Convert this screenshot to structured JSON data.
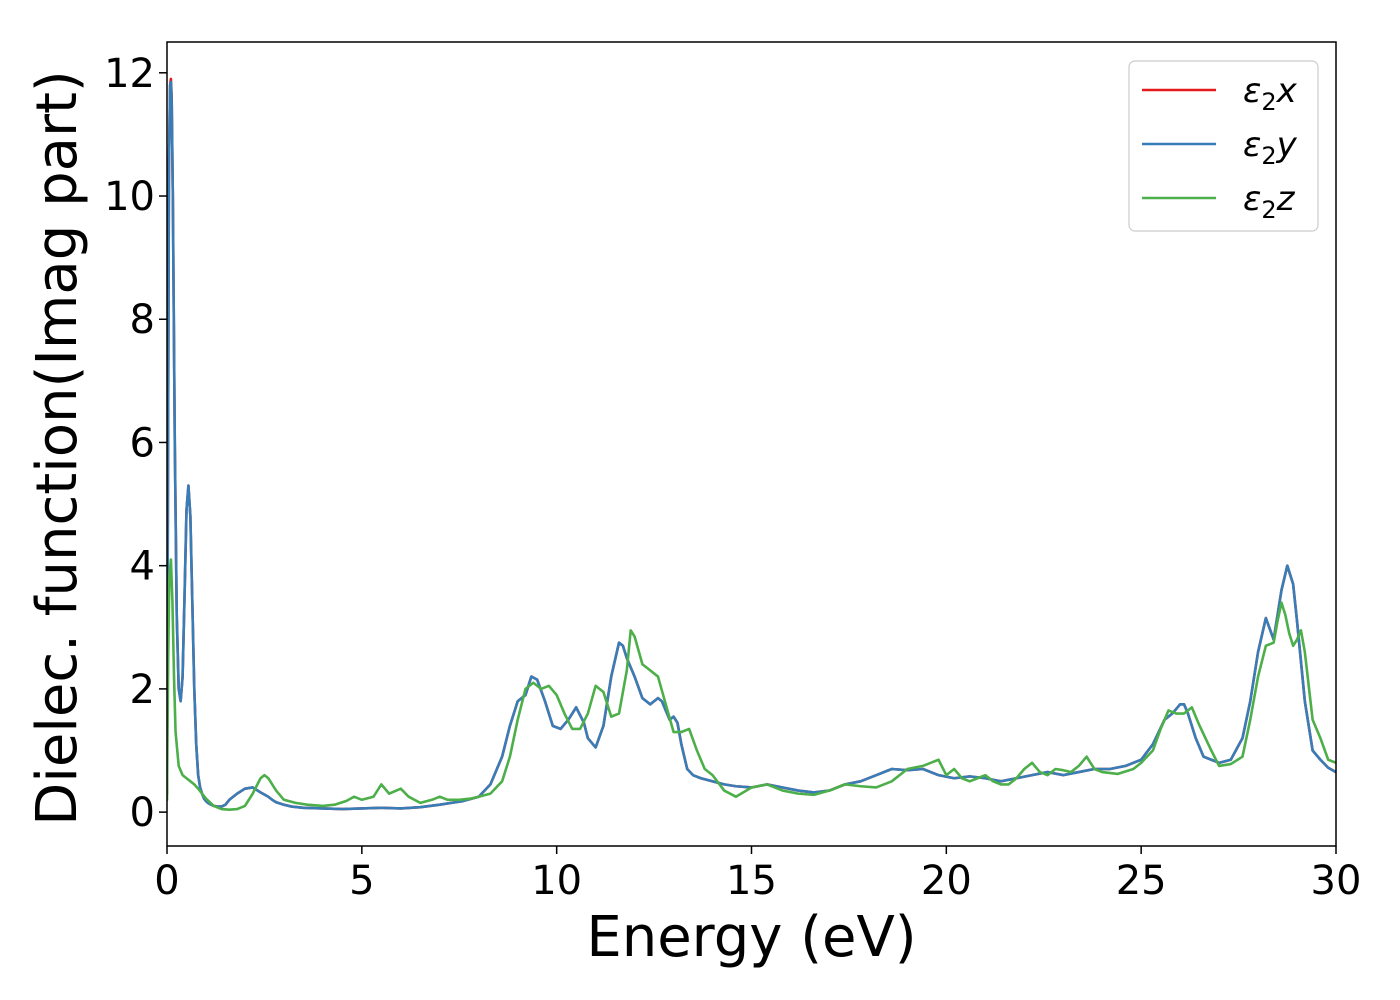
{
  "chart_data": {
    "type": "line",
    "title": "",
    "xlabel": "Energy (eV)",
    "ylabel": "Dielec. function(Imag part)",
    "xlim": [
      0,
      30
    ],
    "ylim": [
      -0.55,
      12.5
    ],
    "xticks": [
      "0",
      "5",
      "10",
      "15",
      "20",
      "25",
      "30"
    ],
    "yticks": [
      "0",
      "2",
      "4",
      "6",
      "8",
      "10",
      "12"
    ],
    "xtick_values": [
      0,
      5,
      10,
      15,
      20,
      25,
      30
    ],
    "ytick_values": [
      0,
      2,
      4,
      6,
      8,
      10,
      12
    ],
    "grid": false,
    "legend_placement": "top-right",
    "series": [
      {
        "name": "ε2x",
        "legend": {
          "base": "ε",
          "sub": "2",
          "tail": "x"
        },
        "color": "#e41a1c",
        "x": [
          0,
          0.02,
          0.05,
          0.08,
          0.1,
          0.12,
          0.15,
          0.2,
          0.25,
          0.3,
          0.35,
          0.4,
          0.45,
          0.5,
          0.55,
          0.6,
          0.65,
          0.7,
          0.75,
          0.8,
          0.85,
          0.9,
          0.95,
          1.0,
          1.05,
          1.1,
          1.2,
          1.3,
          1.4,
          1.5,
          1.6,
          1.8,
          2.0,
          2.2,
          2.4,
          2.6,
          2.7,
          2.8,
          3.0,
          3.2,
          3.5,
          4.0,
          4.5,
          5.0,
          5.5,
          6.0,
          6.5,
          7.0,
          7.3,
          7.6,
          8.0,
          8.3,
          8.6,
          8.8,
          9.0,
          9.2,
          9.35,
          9.5,
          9.7,
          9.9,
          10.1,
          10.3,
          10.5,
          10.7,
          10.8,
          11.0,
          11.2,
          11.4,
          11.6,
          11.7,
          11.8,
          12.0,
          12.2,
          12.4,
          12.6,
          12.7,
          12.9,
          13.0,
          13.1,
          13.2,
          13.35,
          13.5,
          13.7,
          14.0,
          14.3,
          14.6,
          15.0,
          15.4,
          15.8,
          16.2,
          16.6,
          17.0,
          17.4,
          17.8,
          18.2,
          18.6,
          19.0,
          19.4,
          19.8,
          20.2,
          20.6,
          21.0,
          21.4,
          21.8,
          22.2,
          22.6,
          23.0,
          23.4,
          23.8,
          24.2,
          24.6,
          25.0,
          25.3,
          25.6,
          25.8,
          26.0,
          26.1,
          26.2,
          26.4,
          26.6,
          26.8,
          27.0,
          27.3,
          27.6,
          27.8,
          28.0,
          28.2,
          28.4,
          28.5,
          28.6,
          28.75,
          28.9,
          29.0,
          29.2,
          29.4,
          29.6,
          29.8,
          30.0
        ],
        "values": [
          0.3,
          4.5,
          10.5,
          11.8,
          11.9,
          11.6,
          10.0,
          6.0,
          3.2,
          2.0,
          1.8,
          2.2,
          3.5,
          4.9,
          5.3,
          4.8,
          3.4,
          2.0,
          1.1,
          0.6,
          0.4,
          0.3,
          0.22,
          0.18,
          0.15,
          0.13,
          0.1,
          0.09,
          0.09,
          0.12,
          0.2,
          0.3,
          0.38,
          0.4,
          0.32,
          0.25,
          0.2,
          0.16,
          0.12,
          0.09,
          0.07,
          0.06,
          0.05,
          0.06,
          0.07,
          0.06,
          0.08,
          0.12,
          0.15,
          0.18,
          0.25,
          0.45,
          0.9,
          1.4,
          1.8,
          1.9,
          2.2,
          2.15,
          1.8,
          1.4,
          1.35,
          1.5,
          1.7,
          1.45,
          1.2,
          1.05,
          1.4,
          2.2,
          2.75,
          2.7,
          2.5,
          2.2,
          1.85,
          1.75,
          1.85,
          1.8,
          1.5,
          1.55,
          1.45,
          1.1,
          0.7,
          0.6,
          0.55,
          0.5,
          0.45,
          0.42,
          0.4,
          0.45,
          0.4,
          0.35,
          0.32,
          0.35,
          0.45,
          0.5,
          0.6,
          0.7,
          0.68,
          0.7,
          0.6,
          0.55,
          0.58,
          0.55,
          0.5,
          0.55,
          0.6,
          0.65,
          0.6,
          0.65,
          0.7,
          0.7,
          0.75,
          0.85,
          1.1,
          1.5,
          1.6,
          1.75,
          1.75,
          1.6,
          1.2,
          0.9,
          0.85,
          0.8,
          0.85,
          1.2,
          1.8,
          2.6,
          3.15,
          2.8,
          3.2,
          3.6,
          4.0,
          3.7,
          3.1,
          1.8,
          1.0,
          0.85,
          0.72,
          0.65
        ]
      },
      {
        "name": "ε2y",
        "legend": {
          "base": "ε",
          "sub": "2",
          "tail": "y"
        },
        "color": "#377eb8",
        "x": [
          0,
          0.02,
          0.05,
          0.08,
          0.1,
          0.12,
          0.15,
          0.2,
          0.25,
          0.3,
          0.35,
          0.4,
          0.45,
          0.5,
          0.55,
          0.6,
          0.65,
          0.7,
          0.75,
          0.8,
          0.85,
          0.9,
          0.95,
          1.0,
          1.05,
          1.1,
          1.2,
          1.3,
          1.4,
          1.5,
          1.6,
          1.8,
          2.0,
          2.2,
          2.4,
          2.6,
          2.7,
          2.8,
          3.0,
          3.2,
          3.5,
          4.0,
          4.5,
          5.0,
          5.5,
          6.0,
          6.5,
          7.0,
          7.3,
          7.6,
          8.0,
          8.3,
          8.6,
          8.8,
          9.0,
          9.2,
          9.35,
          9.5,
          9.7,
          9.9,
          10.1,
          10.3,
          10.5,
          10.7,
          10.8,
          11.0,
          11.2,
          11.4,
          11.6,
          11.7,
          11.8,
          12.0,
          12.2,
          12.4,
          12.6,
          12.7,
          12.9,
          13.0,
          13.1,
          13.2,
          13.35,
          13.5,
          13.7,
          14.0,
          14.3,
          14.6,
          15.0,
          15.4,
          15.8,
          16.2,
          16.6,
          17.0,
          17.4,
          17.8,
          18.2,
          18.6,
          19.0,
          19.4,
          19.8,
          20.2,
          20.6,
          21.0,
          21.4,
          21.8,
          22.2,
          22.6,
          23.0,
          23.4,
          23.8,
          24.2,
          24.6,
          25.0,
          25.3,
          25.6,
          25.8,
          26.0,
          26.1,
          26.2,
          26.4,
          26.6,
          26.8,
          27.0,
          27.3,
          27.6,
          27.8,
          28.0,
          28.2,
          28.4,
          28.5,
          28.6,
          28.75,
          28.9,
          29.0,
          29.2,
          29.4,
          29.6,
          29.8,
          30.0
        ],
        "values": [
          0.3,
          4.5,
          10.5,
          11.8,
          11.85,
          11.55,
          10.0,
          6.0,
          3.2,
          2.0,
          1.8,
          2.2,
          3.5,
          4.9,
          5.3,
          4.8,
          3.4,
          2.0,
          1.1,
          0.6,
          0.4,
          0.3,
          0.22,
          0.18,
          0.15,
          0.13,
          0.1,
          0.09,
          0.09,
          0.12,
          0.2,
          0.3,
          0.38,
          0.4,
          0.32,
          0.25,
          0.2,
          0.16,
          0.12,
          0.09,
          0.07,
          0.06,
          0.05,
          0.06,
          0.07,
          0.06,
          0.08,
          0.12,
          0.15,
          0.18,
          0.25,
          0.45,
          0.9,
          1.4,
          1.8,
          1.9,
          2.2,
          2.15,
          1.8,
          1.4,
          1.35,
          1.5,
          1.7,
          1.45,
          1.2,
          1.05,
          1.4,
          2.2,
          2.75,
          2.7,
          2.5,
          2.2,
          1.85,
          1.75,
          1.85,
          1.8,
          1.5,
          1.55,
          1.45,
          1.1,
          0.7,
          0.6,
          0.55,
          0.5,
          0.45,
          0.42,
          0.4,
          0.45,
          0.4,
          0.35,
          0.32,
          0.35,
          0.45,
          0.5,
          0.6,
          0.7,
          0.68,
          0.7,
          0.6,
          0.55,
          0.58,
          0.55,
          0.5,
          0.55,
          0.6,
          0.65,
          0.6,
          0.65,
          0.7,
          0.7,
          0.75,
          0.85,
          1.1,
          1.5,
          1.6,
          1.75,
          1.75,
          1.6,
          1.2,
          0.9,
          0.85,
          0.8,
          0.85,
          1.2,
          1.8,
          2.6,
          3.15,
          2.8,
          3.2,
          3.6,
          4.0,
          3.7,
          3.1,
          1.8,
          1.0,
          0.85,
          0.72,
          0.65
        ]
      },
      {
        "name": "ε2z",
        "legend": {
          "base": "ε",
          "sub": "2",
          "tail": "z"
        },
        "color": "#4daf4a",
        "x": [
          0,
          0.03,
          0.06,
          0.1,
          0.14,
          0.18,
          0.22,
          0.3,
          0.4,
          0.5,
          0.6,
          0.7,
          0.8,
          1.0,
          1.2,
          1.4,
          1.6,
          1.8,
          2.0,
          2.2,
          2.4,
          2.5,
          2.6,
          2.8,
          3.0,
          3.3,
          3.6,
          4.0,
          4.3,
          4.6,
          4.8,
          5.0,
          5.3,
          5.5,
          5.7,
          6.0,
          6.2,
          6.5,
          6.8,
          7.0,
          7.2,
          7.5,
          7.8,
          8.0,
          8.3,
          8.6,
          8.8,
          9.0,
          9.2,
          9.4,
          9.6,
          9.8,
          10.0,
          10.2,
          10.4,
          10.6,
          10.8,
          11.0,
          11.2,
          11.4,
          11.6,
          11.8,
          11.9,
          12.0,
          12.2,
          12.4,
          12.6,
          12.8,
          13.0,
          13.2,
          13.4,
          13.6,
          13.8,
          14.0,
          14.3,
          14.6,
          15.0,
          15.4,
          15.8,
          16.2,
          16.6,
          17.0,
          17.4,
          17.8,
          18.2,
          18.6,
          19.0,
          19.4,
          19.6,
          19.8,
          20.0,
          20.2,
          20.4,
          20.6,
          20.8,
          21.0,
          21.2,
          21.4,
          21.6,
          21.8,
          22.0,
          22.2,
          22.4,
          22.6,
          22.8,
          23.0,
          23.2,
          23.4,
          23.6,
          23.8,
          24.0,
          24.4,
          24.8,
          25.0,
          25.3,
          25.5,
          25.7,
          25.9,
          26.1,
          26.3,
          26.5,
          26.8,
          27.0,
          27.3,
          27.6,
          27.8,
          28.0,
          28.2,
          28.4,
          28.5,
          28.6,
          28.7,
          28.8,
          28.9,
          29.0,
          29.1,
          29.2,
          29.4,
          29.6,
          29.8,
          30.0
        ],
        "values": [
          0.2,
          2.5,
          3.8,
          4.1,
          3.4,
          2.2,
          1.3,
          0.75,
          0.6,
          0.55,
          0.5,
          0.45,
          0.38,
          0.22,
          0.1,
          0.05,
          0.04,
          0.05,
          0.1,
          0.3,
          0.55,
          0.6,
          0.55,
          0.35,
          0.2,
          0.15,
          0.12,
          0.1,
          0.12,
          0.18,
          0.25,
          0.2,
          0.25,
          0.45,
          0.3,
          0.38,
          0.25,
          0.15,
          0.2,
          0.25,
          0.2,
          0.2,
          0.22,
          0.25,
          0.3,
          0.5,
          0.9,
          1.5,
          2.0,
          2.1,
          2.0,
          2.05,
          1.9,
          1.6,
          1.35,
          1.35,
          1.6,
          2.05,
          1.95,
          1.55,
          1.6,
          2.3,
          2.95,
          2.85,
          2.4,
          2.3,
          2.2,
          1.75,
          1.3,
          1.3,
          1.35,
          1.0,
          0.7,
          0.6,
          0.35,
          0.25,
          0.4,
          0.45,
          0.35,
          0.3,
          0.28,
          0.35,
          0.45,
          0.42,
          0.4,
          0.5,
          0.7,
          0.75,
          0.8,
          0.85,
          0.6,
          0.7,
          0.55,
          0.5,
          0.55,
          0.6,
          0.5,
          0.45,
          0.45,
          0.55,
          0.7,
          0.8,
          0.65,
          0.6,
          0.7,
          0.68,
          0.65,
          0.75,
          0.9,
          0.7,
          0.65,
          0.62,
          0.7,
          0.8,
          1.0,
          1.35,
          1.65,
          1.6,
          1.6,
          1.7,
          1.4,
          1.0,
          0.75,
          0.78,
          0.9,
          1.5,
          2.2,
          2.7,
          2.75,
          3.1,
          3.4,
          3.2,
          2.9,
          2.7,
          2.8,
          2.95,
          2.6,
          1.5,
          1.2,
          0.85,
          0.8
        ]
      }
    ]
  }
}
